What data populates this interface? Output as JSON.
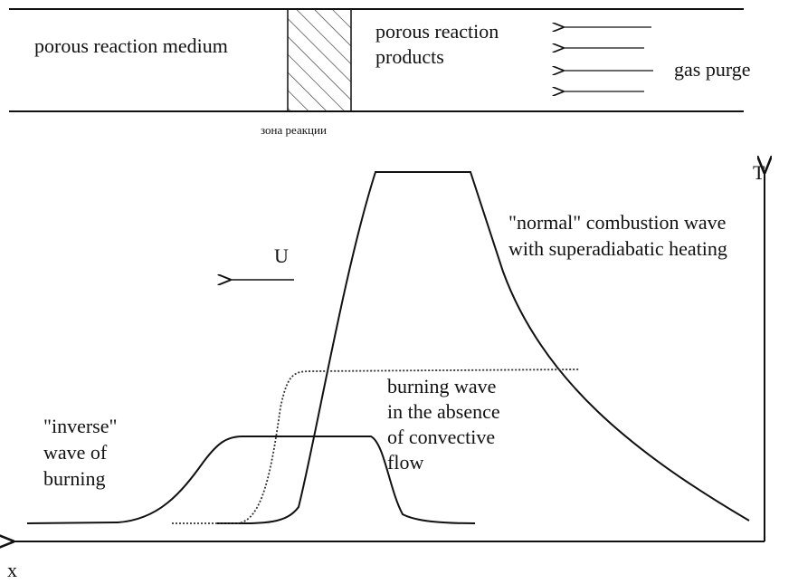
{
  "top": {
    "left_label": "porous reaction medium",
    "right_label": [
      "porous reaction",
      "products"
    ],
    "purge_label": "gas purge",
    "zone_label": "зона реакции"
  },
  "plot": {
    "y_axis_label": "T",
    "x_axis_label": "x",
    "velocity_label": "U",
    "normal_wave": [
      "\"normal\" combustion wave",
      "with superadiabatic heating"
    ],
    "no_flow_wave": [
      "burning wave",
      "in the absence",
      "of convective",
      "flow"
    ],
    "inverse_wave": [
      "\"inverse\"",
      "wave of",
      "burning"
    ]
  }
}
